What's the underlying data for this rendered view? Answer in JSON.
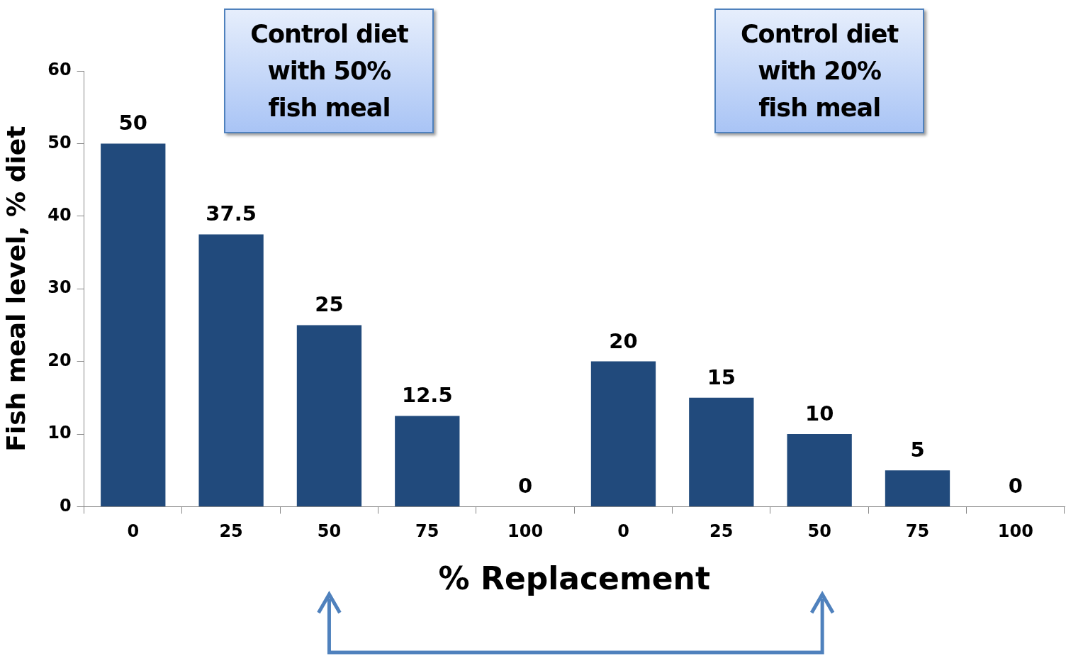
{
  "chart_data": {
    "type": "bar",
    "xlabel": "% Replacement",
    "ylabel": "Fish meal level, % diet",
    "categories": [
      "0",
      "25",
      "50",
      "75",
      "100",
      "0",
      "25",
      "50",
      "75",
      "100"
    ],
    "values": [
      50,
      37.5,
      25,
      12.5,
      0,
      20,
      15,
      10,
      5,
      0
    ],
    "color": "#214a7c",
    "ylim": [
      0,
      60
    ],
    "yticks": [
      0,
      10,
      20,
      30,
      40,
      50,
      60
    ],
    "grid": false,
    "legend": false,
    "data_labels": true,
    "annotations": [
      "Control diet with 50% fish meal",
      "Control diet with 20% fish meal"
    ]
  }
}
